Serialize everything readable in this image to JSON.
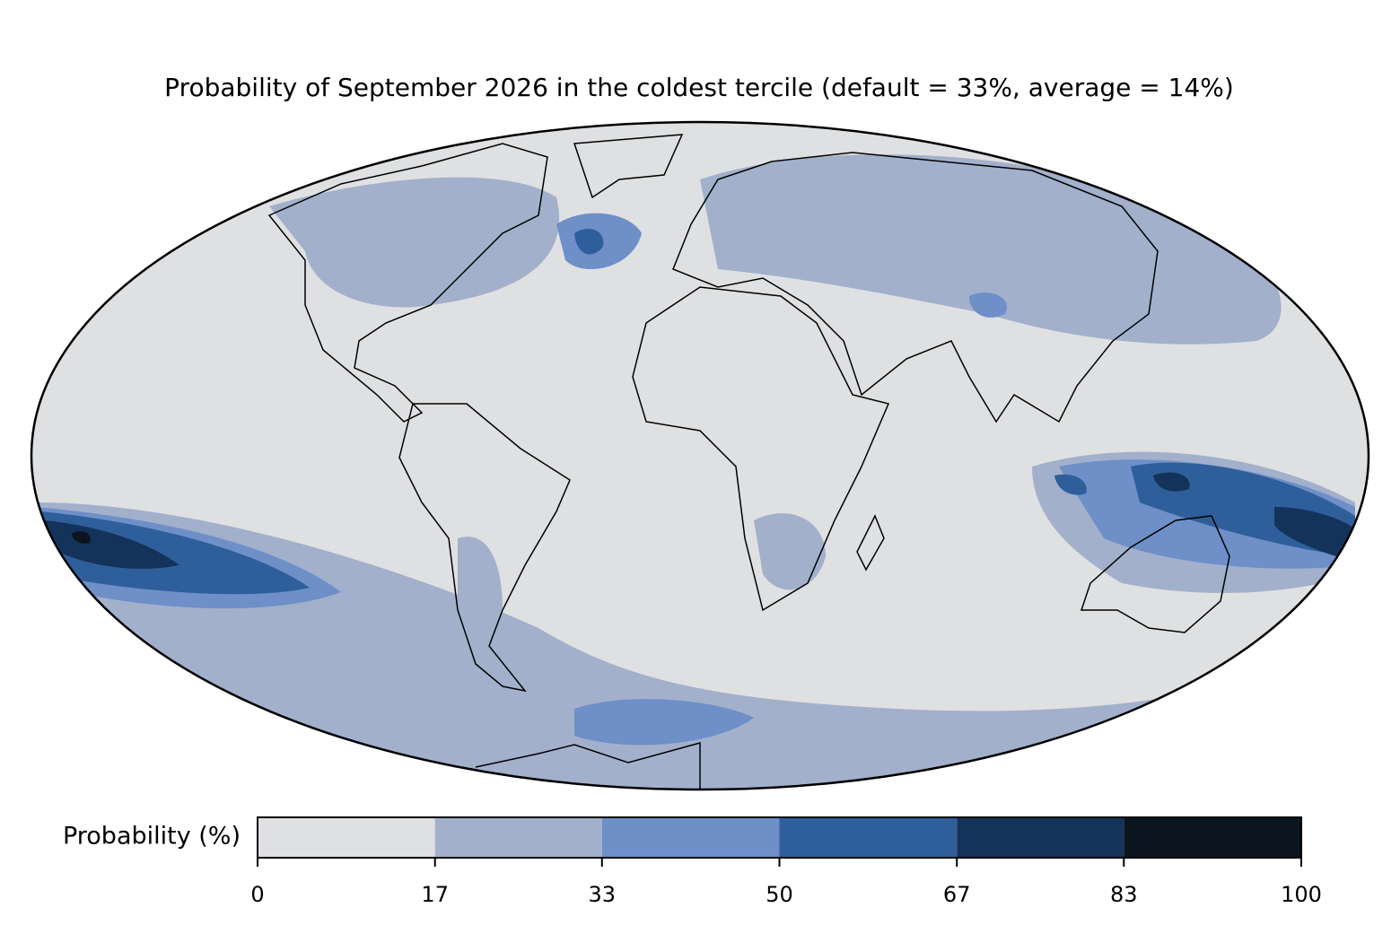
{
  "chart_data": {
    "type": "map",
    "title": "Probability of September 2026 in the coldest tercile (default = 33%, average = 14%)",
    "colorbar": {
      "label": "Probability (%)",
      "ticks": [
        0,
        17,
        33,
        50,
        67,
        83,
        100
      ],
      "colors": [
        "#dfe0e2",
        "#a2b0cb",
        "#6e8fc8",
        "#2f5f9b",
        "#14335a",
        "#0b1520"
      ]
    }
  }
}
